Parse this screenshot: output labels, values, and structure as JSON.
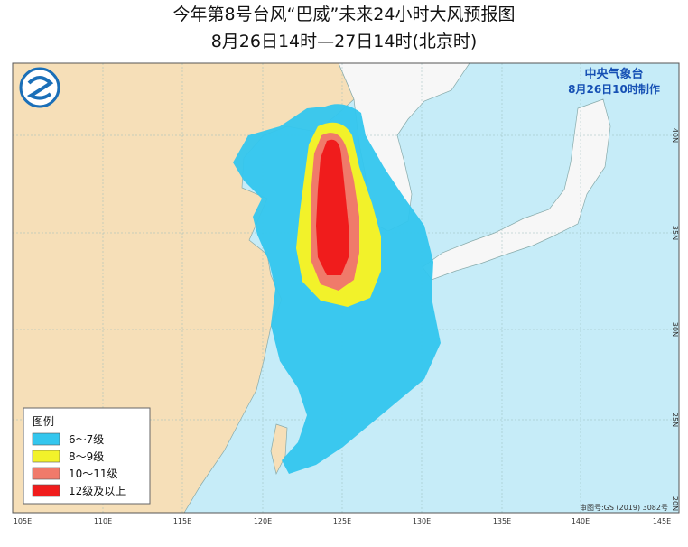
{
  "header": {
    "title": "今年第8号台风“巴威”未来24小时大风预报图",
    "subtitle": "8月26日14时—27日14时(北京时)"
  },
  "agency": {
    "name": "中央气象台",
    "time": "8月26日10时制作"
  },
  "legend": {
    "title": "图例",
    "items": [
      {
        "label": "6～7级",
        "color": "#33c6ee"
      },
      {
        "label": "8～9级",
        "color": "#f2f22a"
      },
      {
        "label": "10～11级",
        "color": "#f07a6a"
      },
      {
        "label": "12级及以上",
        "color": "#f01c1c"
      }
    ]
  },
  "lon_labels": [
    "105E",
    "110E",
    "115E",
    "120E",
    "125E",
    "130E",
    "135E",
    "140E",
    "145E"
  ],
  "lat_labels": [
    "40N",
    "35N",
    "30N",
    "25N",
    "20N"
  ],
  "approval": "审图号:GS (2019) 3082号"
}
